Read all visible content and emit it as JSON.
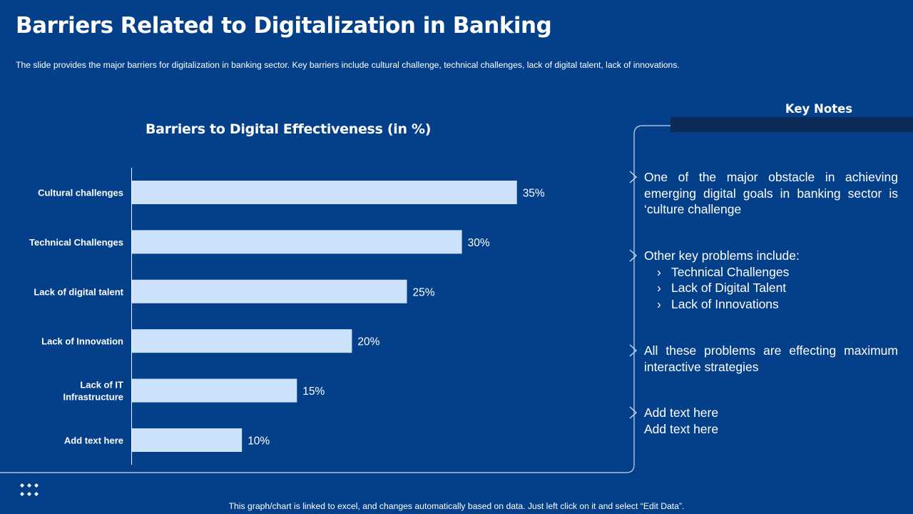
{
  "header": {
    "title": "Barriers Related to Digitalization in Banking",
    "subtitle": "The slide provides  the major barriers  for digitalization  in banking sector. Key barriers  include cultural challenge,  technical challenges,  lack of digital talent, lack of innovations."
  },
  "chart_data": {
    "type": "bar",
    "orientation": "horizontal",
    "title": "Barriers to Digital Effectiveness (in %)",
    "categories": [
      "Cultural challenges",
      "Technical Challenges",
      "Lack of digital talent",
      "Lack of Innovation",
      "Lack of IT Infrastructure",
      "Add text here"
    ],
    "category_lines": [
      [
        "Cultural challenges"
      ],
      [
        "Technical Challenges"
      ],
      [
        "Lack of digital talent"
      ],
      [
        "Lack of Innovation"
      ],
      [
        "Lack of IT",
        "Infrastructure"
      ],
      [
        "Add text here"
      ]
    ],
    "values": [
      35,
      30,
      25,
      20,
      15,
      10
    ],
    "value_labels": [
      "35%",
      "30%",
      "25%",
      "20%",
      "15%",
      "10%"
    ],
    "xlim": [
      0,
      50
    ],
    "xlabel": "",
    "ylabel": "",
    "grid": false,
    "legend": "none",
    "bar_color": "#cfe4fb"
  },
  "key_notes": {
    "heading": "Key Notes",
    "note1": "One of the major obstacle in achieving emerging digital goals in banking sector is ‘culture challenge",
    "note2_intro": "Other key problems include:",
    "note2_items": [
      "Technical Challenges",
      "Lack of Digital Talent",
      "Lack of Innovations"
    ],
    "note3": "All these problems are effecting maximum interactive strategies",
    "note4_line1": "Add text here",
    "note4_line2": "Add text here"
  },
  "footer": {
    "text": "This graph/chart is linked to excel, and changes automatically based on data. Just left click on it and select “Edit Data”."
  },
  "colors": {
    "background": "#04408a",
    "bar": "#cfe4fb",
    "notes_bar": "#0b2a58",
    "text": "#ffffff"
  }
}
